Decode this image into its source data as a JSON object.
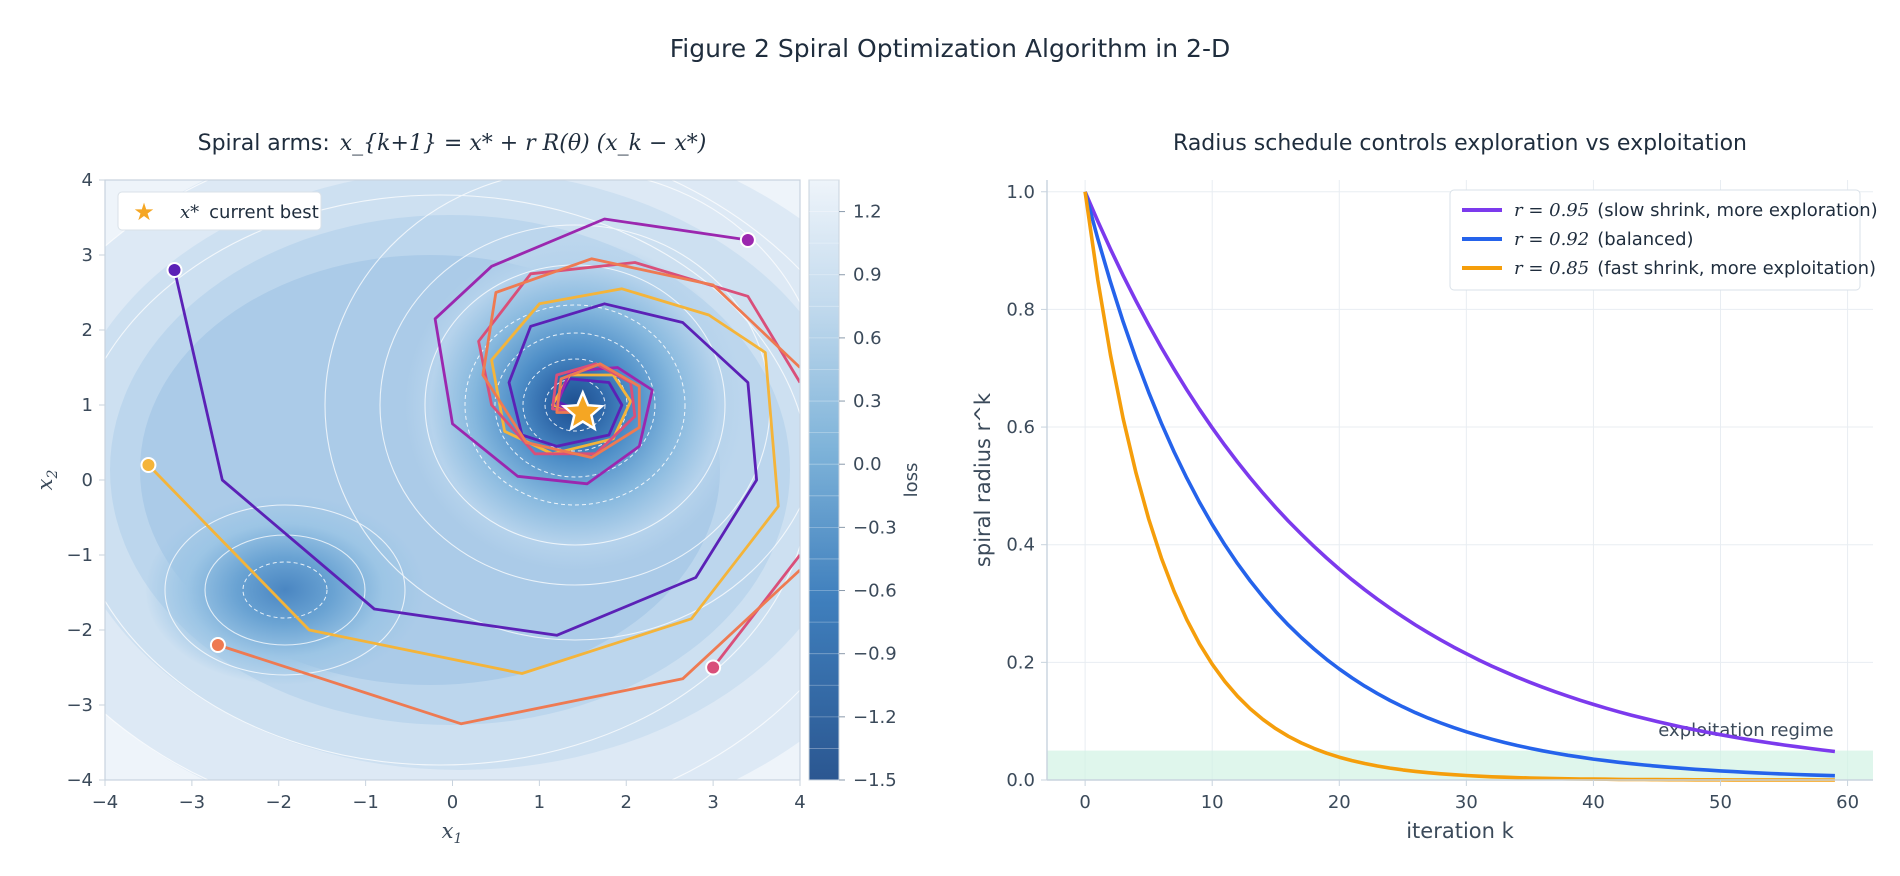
{
  "figure": {
    "title": "Figure 2  Spiral Optimization Algorithm in 2-D"
  },
  "colors": {
    "grid": "#e8edf2",
    "axis": "#c8d3de",
    "text": "#1f2d3d",
    "tick_text": "#3b4a5a"
  },
  "chart_data": [
    {
      "type": "contour",
      "title_prefix": "Spiral arms:",
      "title_formula": "x_{k+1} = x* + r R(θ) (x_k − x*)",
      "xlabel": "x1",
      "ylabel": "x2",
      "xlim": [
        -4,
        4
      ],
      "ylim": [
        -4,
        4
      ],
      "xticks": [
        -4,
        -3,
        -2,
        -1,
        0,
        1,
        2,
        3,
        4
      ],
      "yticks": [
        -4,
        -3,
        -2,
        -1,
        0,
        1,
        2,
        3,
        4
      ],
      "xtick_labels": [
        "−4",
        "−3",
        "−2",
        "−1",
        "0",
        "1",
        "2",
        "3",
        "4"
      ],
      "ytick_labels": [
        "−4",
        "−3",
        "−2",
        "−1",
        "0",
        "1",
        "2",
        "3",
        "4"
      ],
      "colorbar": {
        "label": "loss",
        "range": [
          -1.5,
          1.35
        ],
        "ticks": [
          -1.5,
          -1.2,
          -0.9,
          -0.6,
          -0.3,
          0.0,
          0.3,
          0.6,
          0.9,
          1.2
        ],
        "tick_labels": [
          "−1.5",
          "−1.2",
          "−0.9",
          "−0.6",
          "−0.3",
          "0.0",
          "0.3",
          "0.6",
          "0.9",
          "1.2"
        ],
        "color_low": "#2b5791",
        "color_high": "#eef4fa"
      },
      "legend": {
        "label_symbol": "x*",
        "label_text": "current best",
        "placement": "top-left"
      },
      "best_point": [
        1.5,
        0.9
      ],
      "star_color": "#f5a623",
      "trajectories": [
        {
          "color": "#5b21b6",
          "points": [
            [
              -3.2,
              2.8
            ],
            [
              -2.65,
              0.0
            ],
            [
              -0.9,
              -1.72
            ],
            [
              1.2,
              -2.07
            ],
            [
              2.8,
              -1.3
            ],
            [
              3.5,
              0.0
            ],
            [
              3.4,
              1.3
            ],
            [
              2.65,
              2.1
            ],
            [
              1.75,
              2.35
            ],
            [
              0.9,
              2.05
            ],
            [
              0.65,
              1.3
            ],
            [
              0.8,
              0.6
            ],
            [
              1.2,
              0.45
            ],
            [
              1.8,
              0.6
            ],
            [
              1.95,
              1.0
            ],
            [
              1.8,
              1.3
            ],
            [
              1.35,
              1.35
            ],
            [
              1.2,
              1.05
            ],
            [
              1.5,
              0.9
            ]
          ]
        },
        {
          "color": "#f4b43a",
          "points": [
            [
              -3.5,
              0.2
            ],
            [
              -1.65,
              -2.0
            ],
            [
              0.8,
              -2.58
            ],
            [
              2.75,
              -1.85
            ],
            [
              3.75,
              -0.35
            ],
            [
              3.6,
              1.7
            ],
            [
              2.95,
              2.2
            ],
            [
              1.95,
              2.55
            ],
            [
              1.0,
              2.35
            ],
            [
              0.45,
              1.6
            ],
            [
              0.6,
              0.65
            ],
            [
              1.15,
              0.35
            ],
            [
              1.85,
              0.55
            ],
            [
              2.05,
              1.05
            ],
            [
              1.85,
              1.4
            ],
            [
              1.35,
              1.4
            ],
            [
              1.15,
              1.0
            ],
            [
              1.5,
              0.9
            ]
          ]
        },
        {
          "color": "#9b27af",
          "points": [
            [
              3.4,
              3.2
            ],
            [
              1.75,
              3.48
            ],
            [
              0.45,
              2.85
            ],
            [
              -0.2,
              2.15
            ],
            [
              0.0,
              0.75
            ],
            [
              0.75,
              0.05
            ],
            [
              1.55,
              -0.05
            ],
            [
              2.15,
              0.45
            ],
            [
              2.3,
              1.2
            ],
            [
              1.9,
              1.5
            ],
            [
              1.35,
              1.45
            ],
            [
              1.2,
              1.0
            ],
            [
              1.5,
              0.9
            ]
          ]
        },
        {
          "color": "#d94f7a",
          "points": [
            [
              3.0,
              -2.5
            ],
            [
              4.0,
              -1.0
            ]
          ]
        },
        {
          "color": "#d94f7a",
          "points": [
            [
              4.0,
              1.3
            ],
            [
              3.4,
              2.45
            ],
            [
              2.1,
              2.9
            ],
            [
              0.9,
              2.75
            ],
            [
              0.3,
              1.85
            ],
            [
              0.45,
              1.0
            ],
            [
              0.95,
              0.35
            ],
            [
              1.65,
              0.35
            ],
            [
              2.1,
              0.85
            ],
            [
              2.05,
              1.3
            ],
            [
              1.65,
              1.55
            ],
            [
              1.2,
              1.4
            ],
            [
              1.15,
              0.95
            ],
            [
              1.5,
              0.9
            ]
          ]
        },
        {
          "color": "#ee7a52",
          "points": [
            [
              -2.7,
              -2.2
            ],
            [
              0.1,
              -3.25
            ],
            [
              2.65,
              -2.65
            ],
            [
              4.0,
              -1.2
            ]
          ]
        },
        {
          "color": "#ee7a52",
          "points": [
            [
              4.0,
              1.5
            ],
            [
              3.0,
              2.6
            ],
            [
              1.6,
              2.95
            ],
            [
              0.5,
              2.5
            ],
            [
              0.35,
              1.4
            ],
            [
              0.85,
              0.5
            ],
            [
              1.6,
              0.3
            ],
            [
              2.15,
              0.7
            ],
            [
              2.15,
              1.25
            ],
            [
              1.7,
              1.55
            ],
            [
              1.25,
              1.35
            ],
            [
              1.2,
              0.9
            ],
            [
              1.5,
              0.9
            ]
          ]
        }
      ],
      "start_points": [
        {
          "x": -3.2,
          "y": 2.8,
          "color": "#5b21b6"
        },
        {
          "x": -3.5,
          "y": 0.2,
          "color": "#f4b43a"
        },
        {
          "x": 3.4,
          "y": 3.2,
          "color": "#9b27af"
        },
        {
          "x": 3.0,
          "y": -2.5,
          "color": "#d94f7a"
        },
        {
          "x": -2.7,
          "y": -2.2,
          "color": "#ee7a52"
        }
      ]
    },
    {
      "type": "line",
      "title": "Radius schedule controls exploration vs exploitation",
      "xlabel": "iteration k",
      "ylabel": "spiral radius  r^k",
      "xlim": [
        -3,
        62
      ],
      "ylim": [
        0,
        1.02
      ],
      "xticks": [
        0,
        10,
        20,
        30,
        40,
        50,
        60
      ],
      "yticks": [
        0.0,
        0.2,
        0.4,
        0.6,
        0.8,
        1.0
      ],
      "xtick_labels": [
        "0",
        "10",
        "20",
        "30",
        "40",
        "50",
        "60"
      ],
      "ytick_labels": [
        "0.0",
        "0.2",
        "0.4",
        "0.6",
        "0.8",
        "1.0"
      ],
      "k_range": [
        0,
        59
      ],
      "series": [
        {
          "name_math": "r = 0.95",
          "name": "(slow shrink, more exploration)",
          "r": 0.95,
          "color": "#7c3aed"
        },
        {
          "name_math": "r = 0.92",
          "name": "(balanced)",
          "r": 0.92,
          "color": "#2563eb"
        },
        {
          "name_math": "r = 0.85",
          "name": "(fast shrink, more exploitation)",
          "r": 0.85,
          "color": "#f59e0b"
        }
      ],
      "band": {
        "y0": 0.0,
        "y1": 0.05,
        "color": "#d1f2e4",
        "label": "exploitation regime",
        "label_color": "#10b981"
      },
      "legend_placement": "top-right"
    }
  ]
}
